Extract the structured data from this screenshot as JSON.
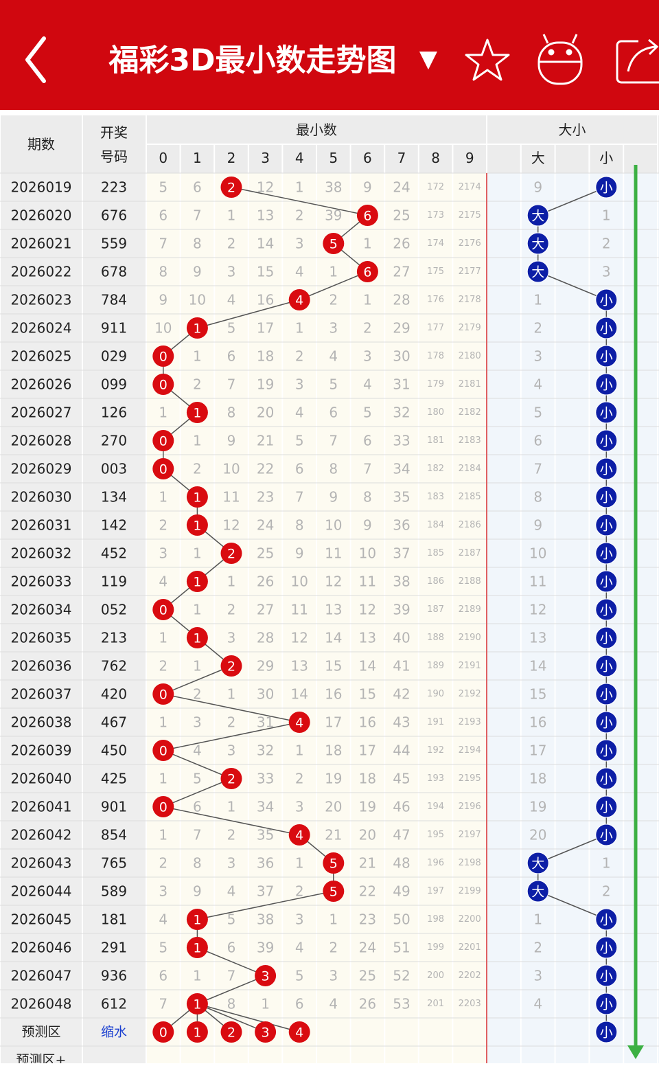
{
  "header": {
    "title": "福彩3D最小数走势图",
    "dropdown": "▼"
  },
  "table": {
    "col_period": "期数",
    "col_number": [
      "开奖",
      "号码"
    ],
    "group_digits": "最小数",
    "group_size": "大小",
    "digit_headers": [
      0,
      1,
      2,
      3,
      4,
      5,
      6,
      7,
      8,
      9
    ],
    "size_headers": [
      "大",
      "小"
    ],
    "rows": [
      {
        "period": "2026019",
        "number": "223",
        "cells": [
          5,
          6,
          2,
          12,
          1,
          38,
          9,
          24,
          172,
          2174
        ],
        "size": [
          9,
          "小"
        ]
      },
      {
        "period": "2026020",
        "number": "676",
        "cells": [
          6,
          7,
          1,
          13,
          2,
          39,
          6,
          25,
          173,
          2175
        ],
        "size": [
          "大",
          1
        ]
      },
      {
        "period": "2026021",
        "number": "559",
        "cells": [
          7,
          8,
          2,
          14,
          3,
          5,
          1,
          26,
          174,
          2176
        ],
        "size": [
          "大",
          2
        ]
      },
      {
        "period": "2026022",
        "number": "678",
        "cells": [
          8,
          9,
          3,
          15,
          4,
          1,
          6,
          27,
          175,
          2177
        ],
        "size": [
          "大",
          3
        ]
      },
      {
        "period": "2026023",
        "number": "784",
        "cells": [
          9,
          10,
          4,
          16,
          4,
          2,
          1,
          28,
          176,
          2178
        ],
        "size": [
          1,
          "小"
        ]
      },
      {
        "period": "2026024",
        "number": "911",
        "cells": [
          10,
          1,
          5,
          17,
          1,
          3,
          2,
          29,
          177,
          2179
        ],
        "size": [
          2,
          "小"
        ]
      },
      {
        "period": "2026025",
        "number": "029",
        "cells": [
          0,
          1,
          6,
          18,
          2,
          4,
          3,
          30,
          178,
          2180
        ],
        "size": [
          3,
          "小"
        ]
      },
      {
        "period": "2026026",
        "number": "099",
        "cells": [
          0,
          2,
          7,
          19,
          3,
          5,
          4,
          31,
          179,
          2181
        ],
        "size": [
          4,
          "小"
        ]
      },
      {
        "period": "2026027",
        "number": "126",
        "cells": [
          1,
          1,
          8,
          20,
          4,
          6,
          5,
          32,
          180,
          2182
        ],
        "size": [
          5,
          "小"
        ]
      },
      {
        "period": "2026028",
        "number": "270",
        "cells": [
          0,
          1,
          9,
          21,
          5,
          7,
          6,
          33,
          181,
          2183
        ],
        "size": [
          6,
          "小"
        ]
      },
      {
        "period": "2026029",
        "number": "003",
        "cells": [
          0,
          2,
          10,
          22,
          6,
          8,
          7,
          34,
          182,
          2184
        ],
        "size": [
          7,
          "小"
        ]
      },
      {
        "period": "2026030",
        "number": "134",
        "cells": [
          1,
          1,
          11,
          23,
          7,
          9,
          8,
          35,
          183,
          2185
        ],
        "size": [
          8,
          "小"
        ]
      },
      {
        "period": "2026031",
        "number": "142",
        "cells": [
          2,
          1,
          12,
          24,
          8,
          10,
          9,
          36,
          184,
          2186
        ],
        "size": [
          9,
          "小"
        ]
      },
      {
        "period": "2026032",
        "number": "452",
        "cells": [
          3,
          1,
          2,
          25,
          9,
          11,
          10,
          37,
          185,
          2187
        ],
        "size": [
          10,
          "小"
        ]
      },
      {
        "period": "2026033",
        "number": "119",
        "cells": [
          4,
          1,
          1,
          26,
          10,
          12,
          11,
          38,
          186,
          2188
        ],
        "size": [
          11,
          "小"
        ]
      },
      {
        "period": "2026034",
        "number": "052",
        "cells": [
          0,
          1,
          2,
          27,
          11,
          13,
          12,
          39,
          187,
          2189
        ],
        "size": [
          12,
          "小"
        ]
      },
      {
        "period": "2026035",
        "number": "213",
        "cells": [
          1,
          1,
          3,
          28,
          12,
          14,
          13,
          40,
          188,
          2190
        ],
        "size": [
          13,
          "小"
        ]
      },
      {
        "period": "2026036",
        "number": "762",
        "cells": [
          2,
          1,
          2,
          29,
          13,
          15,
          14,
          41,
          189,
          2191
        ],
        "size": [
          14,
          "小"
        ]
      },
      {
        "period": "2026037",
        "number": "420",
        "cells": [
          0,
          2,
          1,
          30,
          14,
          16,
          15,
          42,
          190,
          2192
        ],
        "size": [
          15,
          "小"
        ]
      },
      {
        "period": "2026038",
        "number": "467",
        "cells": [
          1,
          3,
          2,
          31,
          4,
          17,
          16,
          43,
          191,
          2193
        ],
        "size": [
          16,
          "小"
        ]
      },
      {
        "period": "2026039",
        "number": "450",
        "cells": [
          0,
          4,
          3,
          32,
          1,
          18,
          17,
          44,
          192,
          2194
        ],
        "size": [
          17,
          "小"
        ]
      },
      {
        "period": "2026040",
        "number": "425",
        "cells": [
          1,
          5,
          2,
          33,
          2,
          19,
          18,
          45,
          193,
          2195
        ],
        "size": [
          18,
          "小"
        ]
      },
      {
        "period": "2026041",
        "number": "901",
        "cells": [
          0,
          6,
          1,
          34,
          3,
          20,
          19,
          46,
          194,
          2196
        ],
        "size": [
          19,
          "小"
        ]
      },
      {
        "period": "2026042",
        "number": "854",
        "cells": [
          1,
          7,
          2,
          35,
          4,
          21,
          20,
          47,
          195,
          2197
        ],
        "size": [
          20,
          "小"
        ]
      },
      {
        "period": "2026043",
        "number": "765",
        "cells": [
          2,
          8,
          3,
          36,
          1,
          5,
          21,
          48,
          196,
          2198
        ],
        "size": [
          "大",
          1
        ]
      },
      {
        "period": "2026044",
        "number": "589",
        "cells": [
          3,
          9,
          4,
          37,
          2,
          5,
          22,
          49,
          197,
          2199
        ],
        "size": [
          "大",
          2
        ]
      },
      {
        "period": "2026045",
        "number": "181",
        "cells": [
          4,
          1,
          5,
          38,
          3,
          1,
          23,
          50,
          198,
          2200
        ],
        "size": [
          1,
          "小"
        ]
      },
      {
        "period": "2026046",
        "number": "291",
        "cells": [
          5,
          1,
          6,
          39,
          4,
          2,
          24,
          51,
          199,
          2201
        ],
        "size": [
          2,
          "小"
        ]
      },
      {
        "period": "2026047",
        "number": "936",
        "cells": [
          6,
          1,
          7,
          3,
          5,
          3,
          25,
          52,
          200,
          2202
        ],
        "size": [
          3,
          "小"
        ]
      },
      {
        "period": "2026048",
        "number": "612",
        "cells": [
          7,
          1,
          8,
          1,
          6,
          4,
          26,
          53,
          201,
          2203
        ],
        "size": [
          4,
          "小"
        ]
      }
    ],
    "prediction": {
      "label": "预测区",
      "note": "缩水",
      "digits": [
        0,
        1,
        2,
        3,
        4
      ],
      "size": "小"
    },
    "prediction_plus": {
      "label": "预测区+"
    }
  }
}
